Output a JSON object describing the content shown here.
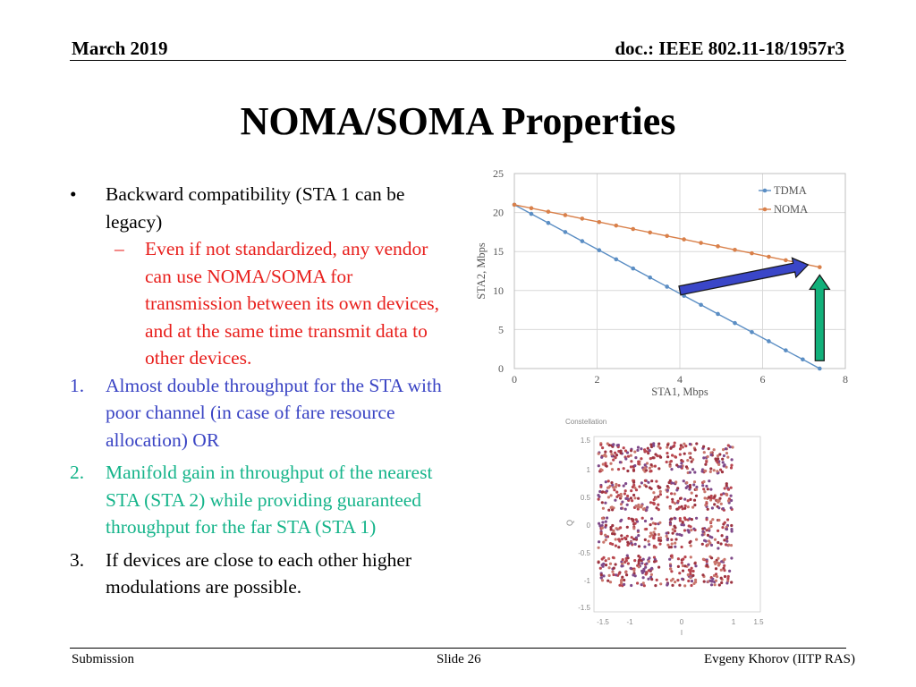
{
  "header": {
    "date": "March 2019",
    "doc": "doc.: IEEE 802.11-18/1957r3"
  },
  "title": "NOMA/SOMA Properties",
  "body": {
    "bullet_marker": "•",
    "bullet": "Backward compatibility (STA 1 can be legacy)",
    "sub_marker": "–",
    "sub": "Even if not standardized, any vendor can use NOMA/SOMA for transmission between its own devices, and at the same time transmit data to other devices.",
    "items": [
      {
        "num": "1.",
        "text": "Almost double throughput for the STA with poor channel (in case of fare resource allocation) OR",
        "color": "#3a44c4"
      },
      {
        "num": "2.",
        "text": "Manifold gain in throughput of the nearest STA (STA 2) while providing guaranteed throughput for the far STA (STA 1)",
        "color": "#15b48a"
      },
      {
        "num": "3.",
        "text": "If devices are close to each other higher modulations are possible.",
        "color": "#000000"
      }
    ]
  },
  "chart_data": {
    "type": "line",
    "xlabel": "STA1, Mbps",
    "ylabel": "STA2, Mbps",
    "xlim": [
      0,
      8
    ],
    "ylim": [
      0,
      25
    ],
    "xticks": [
      0,
      2,
      4,
      6,
      8
    ],
    "yticks": [
      0,
      5,
      10,
      15,
      20,
      25
    ],
    "grid": true,
    "legend_position": "top-right",
    "series": [
      {
        "name": "TDMA",
        "color": "#5b8ec4",
        "x": [
          0,
          0.41,
          0.82,
          1.23,
          1.64,
          2.05,
          2.46,
          2.87,
          3.28,
          3.69,
          4.1,
          4.51,
          4.92,
          5.33,
          5.74,
          6.15,
          6.56,
          6.97,
          7.38
        ],
        "y": [
          21,
          19.83,
          18.67,
          17.5,
          16.33,
          15.17,
          14,
          12.83,
          11.67,
          10.5,
          9.33,
          8.17,
          7,
          5.83,
          4.67,
          3.5,
          2.33,
          1.17,
          0
        ]
      },
      {
        "name": "NOMA",
        "color": "#d9804a",
        "x": [
          0,
          0.41,
          0.82,
          1.23,
          1.64,
          2.05,
          2.46,
          2.87,
          3.28,
          3.69,
          4.1,
          4.51,
          4.92,
          5.33,
          5.74,
          6.15,
          6.56,
          6.97,
          7.38
        ],
        "y": [
          21,
          20.56,
          20.11,
          19.67,
          19.22,
          18.78,
          18.33,
          17.89,
          17.44,
          17,
          16.56,
          16.11,
          15.67,
          15.22,
          14.78,
          14.33,
          13.89,
          13.44,
          13
        ]
      }
    ],
    "annotations": [
      {
        "type": "arrow",
        "color": "#3a46c8",
        "from": [
          4.0,
          10.0
        ],
        "to": [
          7.1,
          13.3
        ]
      },
      {
        "type": "arrow",
        "color": "#12b07a",
        "from": [
          7.38,
          1.0
        ],
        "to": [
          7.38,
          12.0
        ]
      }
    ]
  },
  "constellation": {
    "title": "Constellation",
    "ylabel": "Q",
    "xlabel": "I",
    "yticks": [
      "1.5",
      "1",
      "0.5",
      "0",
      "-0.5",
      "-1",
      "-1.5"
    ],
    "xticks": [
      "-1.5",
      "-1",
      "0",
      "1",
      "1.5"
    ],
    "point_colors": [
      "#b8454f",
      "#7f4a8a",
      "#c9766c",
      "#9c3340"
    ]
  },
  "footer": {
    "left": "Submission",
    "center": "Slide 26",
    "right": "Evgeny Khorov (IITP RAS)"
  }
}
